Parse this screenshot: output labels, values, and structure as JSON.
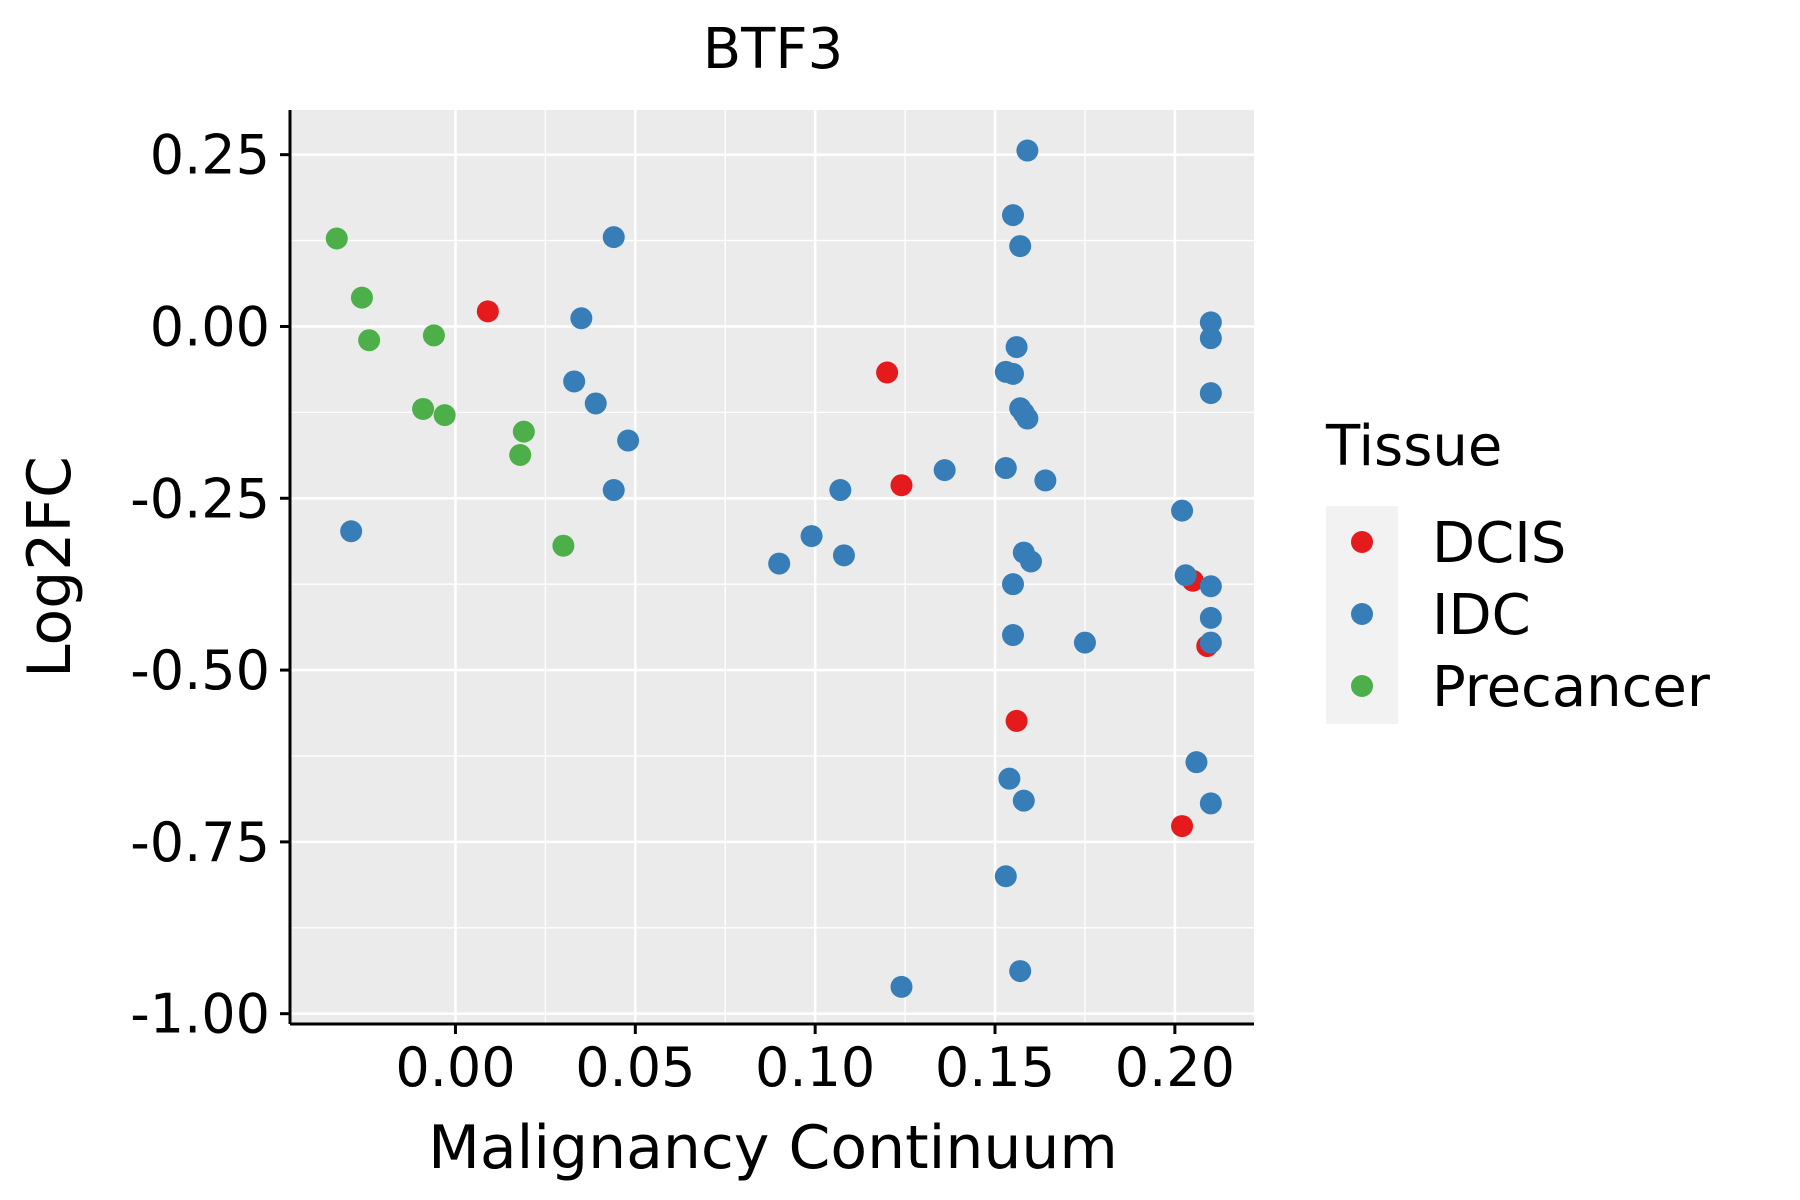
{
  "chart_data": {
    "type": "scatter",
    "title": "BTF3",
    "xlabel": "Malignancy Continuum",
    "ylabel": "Log2FC",
    "xlim": [
      -0.046,
      0.222
    ],
    "ylim": [
      -1.015,
      0.315
    ],
    "x_ticks": [
      0.0,
      0.05,
      0.1,
      0.15,
      0.2
    ],
    "x_tick_labels": [
      "0.00",
      "0.05",
      "0.10",
      "0.15",
      "0.20"
    ],
    "y_ticks": [
      0.25,
      0.0,
      -0.25,
      -0.5,
      -0.75,
      -1.0
    ],
    "y_tick_labels": [
      "0.25",
      "0.00",
      "-0.25",
      "-0.50",
      "-0.75",
      "-1.00"
    ],
    "grid": true,
    "legend": {
      "title": "Tissue",
      "position": "right",
      "entries": [
        "DCIS",
        "IDC",
        "Precancer"
      ]
    },
    "colors": {
      "DCIS": "#E41A1C",
      "IDC": "#377EB8",
      "Precancer": "#4DAF4A"
    },
    "series": [
      {
        "name": "DCIS",
        "points": [
          [
            0.009,
            0.022
          ],
          [
            0.12,
            -0.067
          ],
          [
            0.124,
            -0.231
          ],
          [
            0.156,
            -0.574
          ],
          [
            0.205,
            -0.37
          ],
          [
            0.209,
            -0.465
          ],
          [
            0.202,
            -0.727
          ]
        ]
      },
      {
        "name": "IDC",
        "points": [
          [
            -0.029,
            -0.298
          ],
          [
            0.035,
            0.012
          ],
          [
            0.044,
            0.13
          ],
          [
            0.033,
            -0.08
          ],
          [
            0.039,
            -0.112
          ],
          [
            0.048,
            -0.166
          ],
          [
            0.044,
            -0.238
          ],
          [
            0.09,
            -0.345
          ],
          [
            0.099,
            -0.305
          ],
          [
            0.107,
            -0.238
          ],
          [
            0.108,
            -0.333
          ],
          [
            0.136,
            -0.209
          ],
          [
            0.124,
            -0.961
          ],
          [
            0.159,
            0.256
          ],
          [
            0.155,
            0.162
          ],
          [
            0.157,
            0.117
          ],
          [
            0.156,
            -0.03
          ],
          [
            0.153,
            -0.066
          ],
          [
            0.155,
            -0.069
          ],
          [
            0.157,
            -0.119
          ],
          [
            0.158,
            -0.126
          ],
          [
            0.159,
            -0.134
          ],
          [
            0.153,
            -0.206
          ],
          [
            0.164,
            -0.224
          ],
          [
            0.158,
            -0.329
          ],
          [
            0.16,
            -0.342
          ],
          [
            0.155,
            -0.375
          ],
          [
            0.155,
            -0.449
          ],
          [
            0.175,
            -0.46
          ],
          [
            0.154,
            -0.658
          ],
          [
            0.158,
            -0.69
          ],
          [
            0.153,
            -0.8
          ],
          [
            0.157,
            -0.938
          ],
          [
            0.202,
            -0.268
          ],
          [
            0.203,
            -0.362
          ],
          [
            0.206,
            -0.634
          ],
          [
            0.21,
            0.006
          ],
          [
            0.21,
            -0.017
          ],
          [
            0.21,
            -0.097
          ],
          [
            0.21,
            -0.378
          ],
          [
            0.21,
            -0.424
          ],
          [
            0.21,
            -0.46
          ],
          [
            0.21,
            -0.694
          ]
        ]
      },
      {
        "name": "Precancer",
        "points": [
          [
            -0.033,
            0.128
          ],
          [
            -0.026,
            0.042
          ],
          [
            -0.024,
            -0.02
          ],
          [
            -0.006,
            -0.013
          ],
          [
            -0.009,
            -0.12
          ],
          [
            -0.003,
            -0.129
          ],
          [
            0.019,
            -0.153
          ],
          [
            0.018,
            -0.187
          ],
          [
            0.03,
            -0.319
          ]
        ]
      }
    ]
  }
}
